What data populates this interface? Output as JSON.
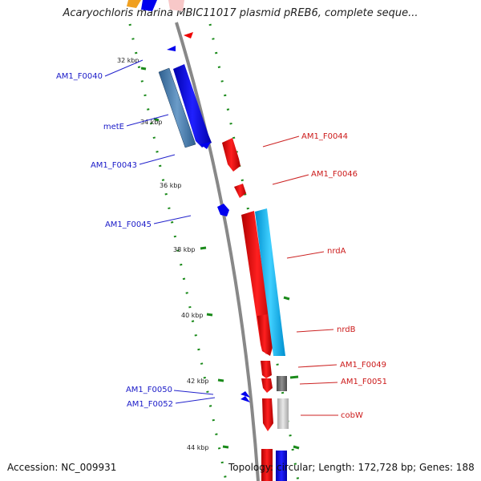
{
  "title": "Acaryochloris marina MBIC11017 plasmid pREB6, complete seque...",
  "footer": {
    "accession": "Accession: NC_009931",
    "topology": "Topology: circular; Length: 172,728 bp; Genes: 188"
  },
  "colors": {
    "backbone": "#808080",
    "reverse_strand": "#0000ee",
    "forward_strand": "#ee0000",
    "orf_blue": "#4a7fb0",
    "orf_cyan": "#00b4f0",
    "orf_gray": "#707070",
    "orf_light": "#c8c8c8",
    "dot_track": "#1a8a1a",
    "label_left": "#1a1ac8",
    "label_right": "#cc1a1a"
  },
  "ticks": [
    "32 kbp",
    "34 kbp",
    "36 kbp",
    "38 kbp",
    "40 kbp",
    "42 kbp",
    "44 kbp"
  ],
  "labels_left": [
    "AM1_F0040",
    "metE",
    "AM1_F0043",
    "AM1_F0045",
    "AM1_F0050",
    "AM1_F0052"
  ],
  "labels_right": [
    "AM1_F0044",
    "AM1_F0046",
    "nrdA",
    "nrdB",
    "AM1_F0049",
    "AM1_F0051",
    "cobW"
  ]
}
